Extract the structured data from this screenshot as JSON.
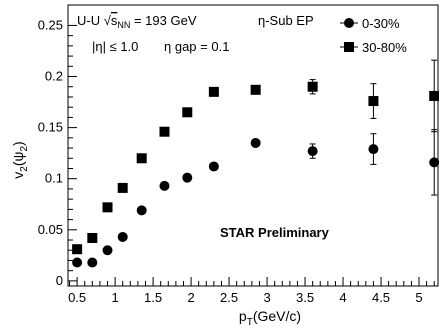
{
  "chart_data": {
    "type": "scatter",
    "title": "",
    "xlabel": "p_T(GeV/c)",
    "ylabel": "v_2(ψ_2)",
    "xlim": [
      0.38,
      5.25
    ],
    "ylim": [
      -0.005,
      0.27
    ],
    "xticks": [
      0.5,
      1,
      1.5,
      2,
      2.5,
      3,
      3.5,
      4,
      4.5,
      5
    ],
    "xtick_labels": [
      "0.5",
      "1",
      "1.5",
      "2",
      "2.5",
      "3",
      "3.5",
      "4",
      "4.5",
      "5"
    ],
    "yticks": [
      0,
      0.05,
      0.1,
      0.15,
      0.2,
      0.25
    ],
    "ytick_labels": [
      "0",
      "0.05",
      "0.1",
      "0.15",
      "0.2",
      "0.25"
    ],
    "grid": false,
    "legend_position": "top-right",
    "annotations": {
      "collision_pre": "U-U ",
      "sqrt_s": "s",
      "sqrt_s_sub": "NN",
      "collision_post": " = 193 GeV",
      "event_plane": "η-Sub EP",
      "eta_range": "|η| ≤ 1.0",
      "eta_gap": "η gap = 0.1",
      "preliminary": "STAR Preliminary"
    },
    "series": [
      {
        "name": "0-30%",
        "marker": "circle",
        "x": [
          0.5,
          0.7,
          0.9,
          1.1,
          1.35,
          1.65,
          1.95,
          2.3,
          2.85,
          3.6,
          4.4,
          5.2
        ],
        "y": [
          0.018,
          0.018,
          0.03,
          0.043,
          0.069,
          0.093,
          0.101,
          0.112,
          0.135,
          0.127,
          0.129,
          0.116
        ],
        "yerr": [
          0.001,
          0.001,
          0.001,
          0.001,
          0.001,
          0.002,
          0.002,
          0.002,
          0.003,
          0.007,
          0.015,
          0.032
        ]
      },
      {
        "name": "30-80%",
        "marker": "square",
        "x": [
          0.5,
          0.7,
          0.9,
          1.1,
          1.35,
          1.65,
          1.95,
          2.3,
          2.85,
          3.6,
          4.4,
          5.2
        ],
        "y": [
          0.031,
          0.042,
          0.072,
          0.091,
          0.12,
          0.146,
          0.165,
          0.185,
          0.187,
          0.19,
          0.176,
          0.181
        ],
        "yerr": [
          0.001,
          0.001,
          0.001,
          0.001,
          0.002,
          0.002,
          0.002,
          0.003,
          0.004,
          0.007,
          0.017,
          0.035
        ]
      }
    ]
  }
}
